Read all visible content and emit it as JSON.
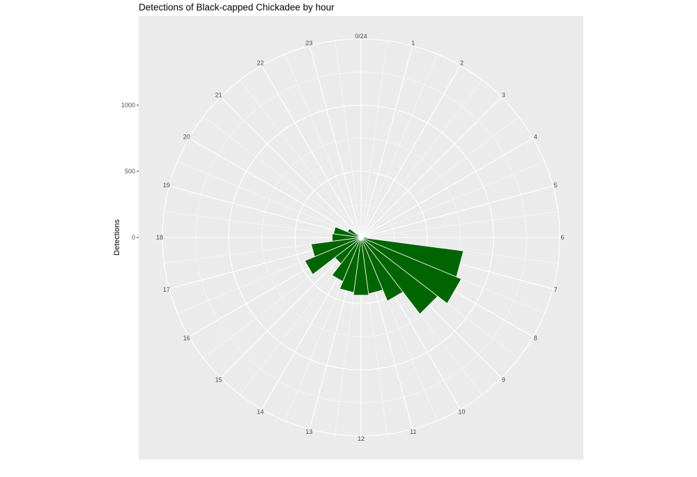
{
  "chart_data": {
    "type": "bar",
    "coord": "polar",
    "title": "Detections of Black-capped Chickadee by hour",
    "xlabel": "",
    "ylabel": "Detections",
    "x_tick_labels": [
      "0/24",
      "1",
      "2",
      "3",
      "4",
      "5",
      "6",
      "7",
      "8",
      "9",
      "10",
      "11",
      "12",
      "13",
      "14",
      "15",
      "16",
      "17",
      "18",
      "19",
      "20",
      "21",
      "22",
      "23"
    ],
    "y_ticks": [
      0,
      500,
      1000
    ],
    "y_tick_labels": [
      "0",
      "500",
      "1000"
    ],
    "ylim": [
      0,
      1000
    ],
    "categories": [
      "0",
      "1",
      "2",
      "3",
      "4",
      "5",
      "6",
      "7",
      "8",
      "9",
      "10",
      "11",
      "12",
      "13",
      "14",
      "15",
      "16",
      "17",
      "18",
      "19",
      "20",
      "21",
      "22",
      "23"
    ],
    "values": [
      0,
      0,
      0,
      0,
      0,
      0,
      40,
      780,
      820,
      730,
      520,
      430,
      440,
      420,
      360,
      250,
      460,
      380,
      220,
      210,
      110,
      0,
      0,
      0
    ],
    "fill_color": "#006400",
    "panel_color": "#EBEBEB",
    "grid": true,
    "legend": "none"
  }
}
